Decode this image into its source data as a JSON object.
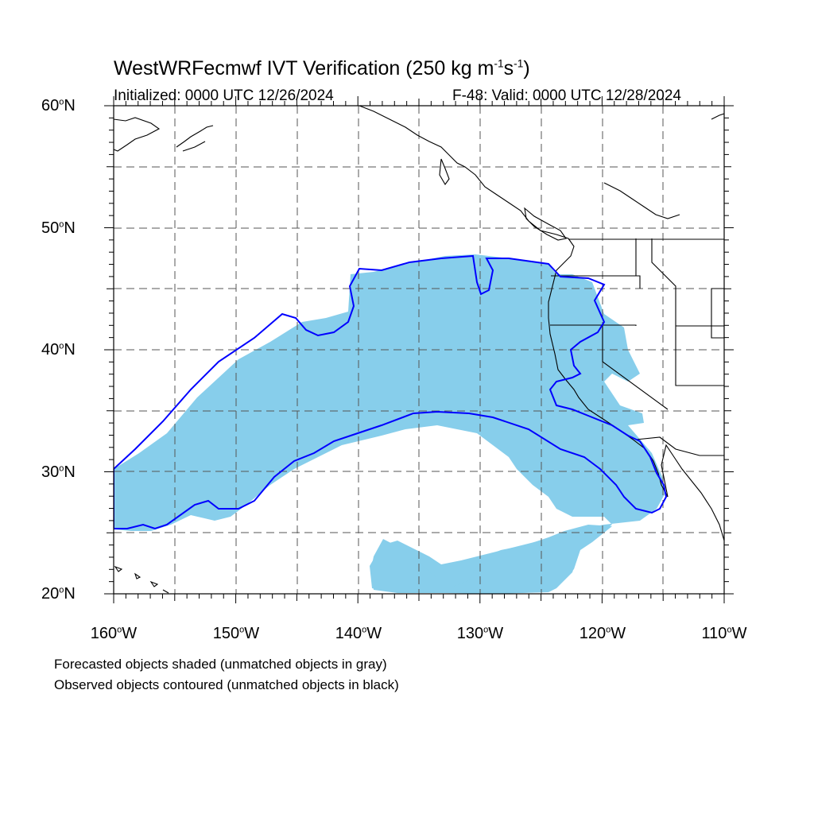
{
  "title": {
    "model": "WestWRFecmwf IVT Verification",
    "threshold_prefix": "(250 kg m",
    "exp1": "-1",
    "threshold_mid": "s",
    "exp2": "-1",
    "threshold_suffix": ")"
  },
  "initialized": "Initialized: 0000 UTC 12/26/2024",
  "valid": "F-48: Valid: 0000 UTC 12/28/2024",
  "lat_labels": [
    {
      "deg": "60",
      "hemi": "N"
    },
    {
      "deg": "50",
      "hemi": "N"
    },
    {
      "deg": "40",
      "hemi": "N"
    },
    {
      "deg": "30",
      "hemi": "N"
    },
    {
      "deg": "20",
      "hemi": "N"
    }
  ],
  "lon_labels": [
    {
      "deg": "160",
      "hemi": "W"
    },
    {
      "deg": "150",
      "hemi": "W"
    },
    {
      "deg": "140",
      "hemi": "W"
    },
    {
      "deg": "130",
      "hemi": "W"
    },
    {
      "deg": "120",
      "hemi": "W"
    },
    {
      "deg": "110",
      "hemi": "W"
    }
  ],
  "notes": [
    "Forecasted objects shaded (unmatched objects in gray)",
    "Observed objects contoured (unmatched objects in black)"
  ],
  "colors": {
    "forecast_fill": "#87ceeb",
    "observed_contour": "#0000ff",
    "coastline": "#000000",
    "grid": "#555555"
  },
  "map_extent": {
    "lon_min": -160,
    "lon_max": -110,
    "lat_min": 20,
    "lat_max": 60
  }
}
